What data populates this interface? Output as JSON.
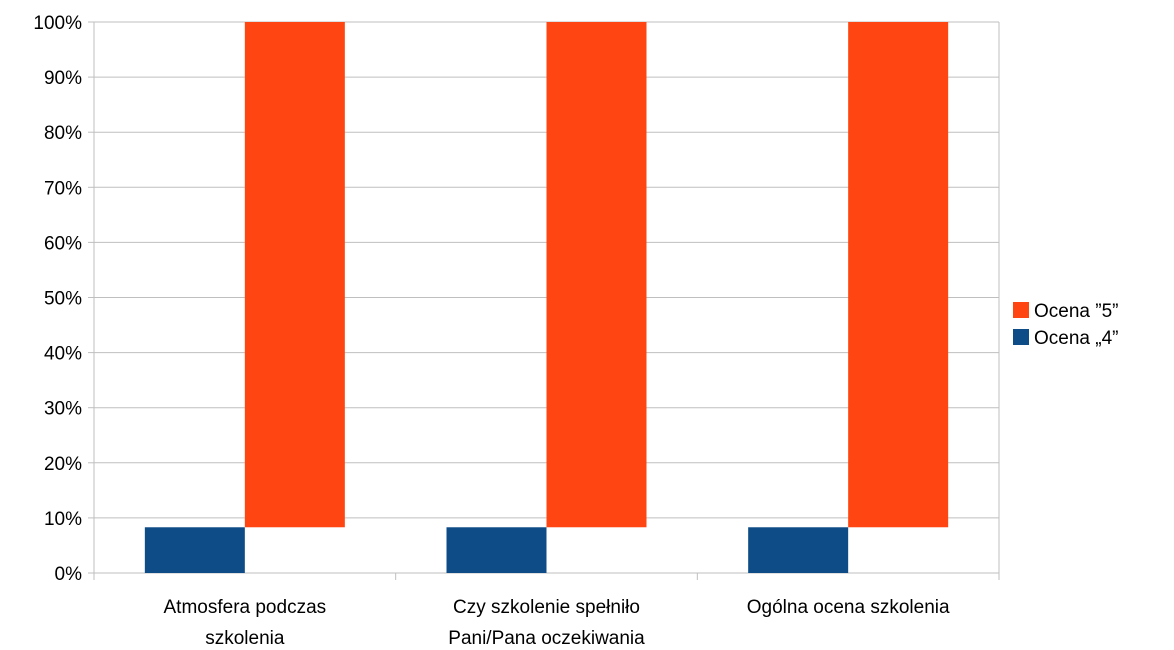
{
  "chart_data": {
    "type": "bar",
    "subtype": "stacked-3d-offset",
    "categories": [
      [
        "Atmosfera podczas",
        "szkolenia"
      ],
      [
        "Czy szkolenie spełniło",
        "Pani/Pana oczekiwania"
      ],
      [
        "Ogólna ocena szkolenia"
      ]
    ],
    "series": [
      {
        "name": "Ocena „4”",
        "values": [
          8.3,
          8.3,
          8.3
        ],
        "color": "#0E4C87"
      },
      {
        "name": "Ocena ”5”",
        "values": [
          91.7,
          91.7,
          91.7
        ],
        "color": "#FF4511"
      }
    ],
    "ylim": [
      0,
      100
    ],
    "yticks": [
      "0%",
      "10%",
      "20%",
      "30%",
      "40%",
      "50%",
      "60%",
      "70%",
      "80%",
      "90%",
      "100%"
    ],
    "grid": true,
    "legend_position": "right"
  }
}
